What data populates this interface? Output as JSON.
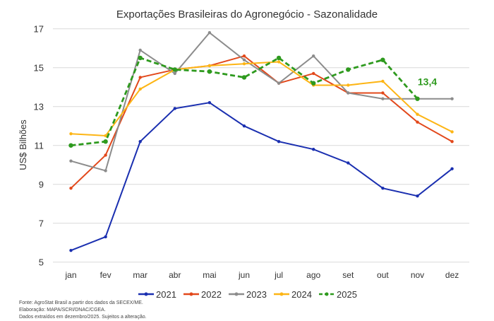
{
  "chart_data": {
    "type": "line",
    "title": "Exportações Brasileiras do Agronegócio - Sazonalidade",
    "xlabel": "",
    "ylabel": "US$ Bilhões",
    "ylim": [
      5,
      17
    ],
    "yticks": [
      5,
      7,
      9,
      11,
      13,
      15,
      17
    ],
    "grid": true,
    "legend_position": "bottom",
    "categories": [
      "jan",
      "fev",
      "mar",
      "abr",
      "mai",
      "jun",
      "jul",
      "ago",
      "set",
      "out",
      "nov",
      "dez"
    ],
    "series": [
      {
        "name": "2021",
        "color": "#1a2fb0",
        "dashed": false,
        "values": [
          5.6,
          6.3,
          11.2,
          12.9,
          13.2,
          12.0,
          11.2,
          10.8,
          10.1,
          8.8,
          8.4,
          9.8
        ]
      },
      {
        "name": "2022",
        "color": "#e2481b",
        "dashed": false,
        "values": [
          8.8,
          10.5,
          14.5,
          14.9,
          15.1,
          15.6,
          14.2,
          14.7,
          13.7,
          13.7,
          12.2,
          11.2
        ]
      },
      {
        "name": "2023",
        "color": "#8c8c8c",
        "dashed": false,
        "values": [
          10.2,
          9.7,
          15.9,
          14.7,
          16.8,
          15.4,
          14.2,
          15.6,
          13.7,
          13.4,
          13.4,
          13.4
        ]
      },
      {
        "name": "2024",
        "color": "#fdb515",
        "dashed": false,
        "values": [
          11.6,
          11.5,
          13.9,
          14.9,
          15.1,
          15.2,
          15.3,
          14.1,
          14.1,
          14.3,
          12.6,
          11.7
        ]
      },
      {
        "name": "2025",
        "color": "#2e9a1e",
        "dashed": true,
        "values": [
          11.0,
          11.2,
          15.5,
          14.9,
          14.8,
          14.5,
          15.5,
          14.2,
          14.9,
          15.4,
          13.4,
          null
        ]
      }
    ],
    "annotations": [
      {
        "series": "2025",
        "category": "nov",
        "text": "13,4"
      }
    ]
  },
  "footnotes": [
    "Fonte: AgroStat Brasil a partir dos dados da SECEX/ME.",
    "Elaboração: MAPA/SCRI/DNAC/CGEA.",
    "Dados extraídos em dezembro/2025. Sujeitos a alteração."
  ]
}
